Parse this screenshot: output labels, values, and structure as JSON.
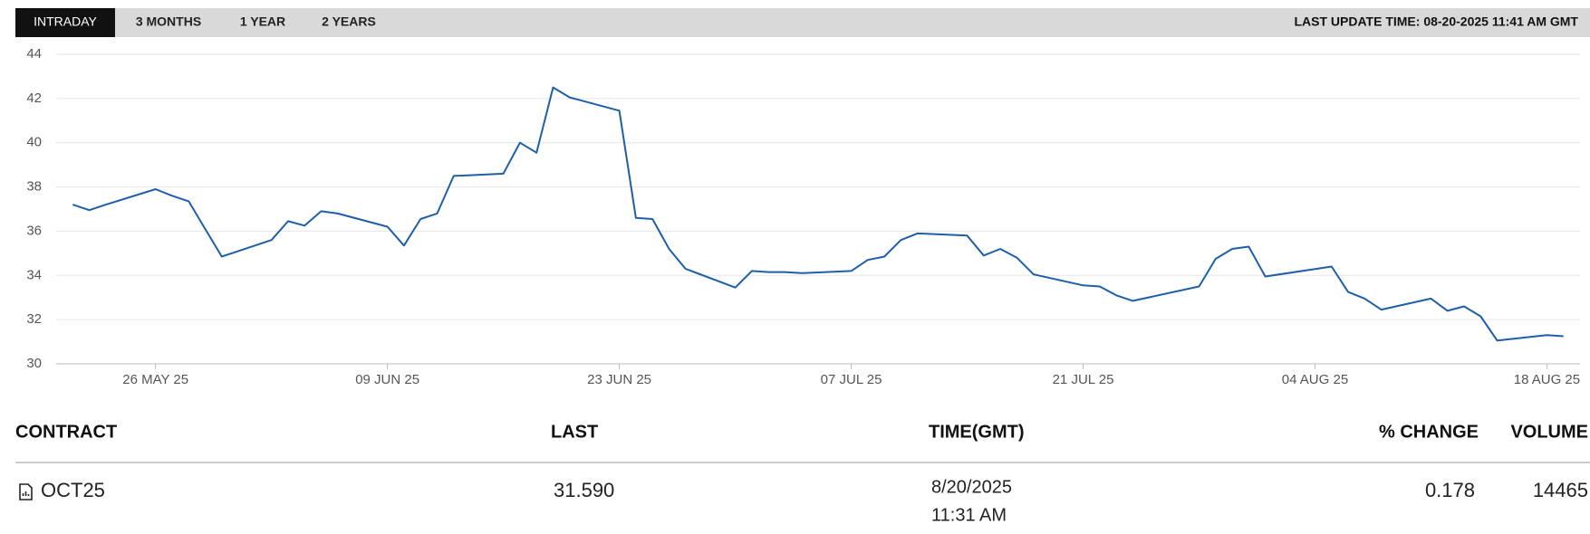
{
  "tabs": [
    "INTRADAY",
    "3 MONTHS",
    "1 YEAR",
    "2 YEARS"
  ],
  "last_update": "LAST UPDATE TIME: 08-20-2025 11:41 AM GMT",
  "chart_data": {
    "type": "line",
    "color": "#1f5fa8",
    "grid": true,
    "x": [
      "2025-05-21",
      "2025-05-22",
      "2025-05-23",
      "2025-05-26",
      "2025-05-27",
      "2025-05-28",
      "2025-05-29",
      "2025-05-30",
      "2025-06-02",
      "2025-06-03",
      "2025-06-04",
      "2025-06-05",
      "2025-06-06",
      "2025-06-09",
      "2025-06-10",
      "2025-06-11",
      "2025-06-12",
      "2025-06-13",
      "2025-06-16",
      "2025-06-17",
      "2025-06-18",
      "2025-06-19",
      "2025-06-20",
      "2025-06-23",
      "2025-06-24",
      "2025-06-25",
      "2025-06-26",
      "2025-06-27",
      "2025-06-30",
      "2025-07-01",
      "2025-07-02",
      "2025-07-03",
      "2025-07-04",
      "2025-07-07",
      "2025-07-08",
      "2025-07-09",
      "2025-07-10",
      "2025-07-11",
      "2025-07-14",
      "2025-07-15",
      "2025-07-16",
      "2025-07-17",
      "2025-07-18",
      "2025-07-21",
      "2025-07-22",
      "2025-07-23",
      "2025-07-24",
      "2025-07-28",
      "2025-07-29",
      "2025-07-30",
      "2025-07-31",
      "2025-08-01",
      "2025-08-05",
      "2025-08-06",
      "2025-08-07",
      "2025-08-08",
      "2025-08-11",
      "2025-08-12",
      "2025-08-13",
      "2025-08-14",
      "2025-08-15",
      "2025-08-18",
      "2025-08-19"
    ],
    "values": [
      37.2,
      36.95,
      37.2,
      37.9,
      37.6,
      37.35,
      36.1,
      34.85,
      35.6,
      36.45,
      36.25,
      36.9,
      36.8,
      36.2,
      35.35,
      36.55,
      36.8,
      38.5,
      38.6,
      40.0,
      39.55,
      42.5,
      42.05,
      41.45,
      36.6,
      36.55,
      35.2,
      34.3,
      33.45,
      34.2,
      34.15,
      34.15,
      34.1,
      34.2,
      34.7,
      34.85,
      35.6,
      35.9,
      35.8,
      34.9,
      35.2,
      34.8,
      34.05,
      33.55,
      33.5,
      33.1,
      32.85,
      33.5,
      34.75,
      35.2,
      35.3,
      33.95,
      34.4,
      33.25,
      32.95,
      32.45,
      32.95,
      32.4,
      32.6,
      32.15,
      31.05,
      31.3,
      31.25
    ],
    "xlim": [
      "2025-05-20",
      "2025-08-20"
    ],
    "xticks": [
      {
        "value": "2025-05-26",
        "label": "26 MAY 25"
      },
      {
        "value": "2025-06-09",
        "label": "09 JUN 25"
      },
      {
        "value": "2025-06-23",
        "label": "23 JUN 25"
      },
      {
        "value": "2025-07-07",
        "label": "07 JUL 25"
      },
      {
        "value": "2025-07-21",
        "label": "21 JUL 25"
      },
      {
        "value": "2025-08-04",
        "label": "04 AUG 25"
      },
      {
        "value": "2025-08-18",
        "label": "18 AUG 25"
      }
    ],
    "ylim": [
      30,
      44
    ],
    "yticks": [
      30,
      32,
      34,
      36,
      38,
      40,
      42,
      44
    ]
  },
  "table": {
    "headers": [
      "CONTRACT",
      "LAST",
      "TIME(GMT)",
      "% CHANGE",
      "VOLUME"
    ],
    "rows": [
      [
        "OCT25",
        "31.590",
        [
          "8/20/2025",
          "11:31 AM"
        ],
        "0.178",
        "14465"
      ]
    ]
  }
}
